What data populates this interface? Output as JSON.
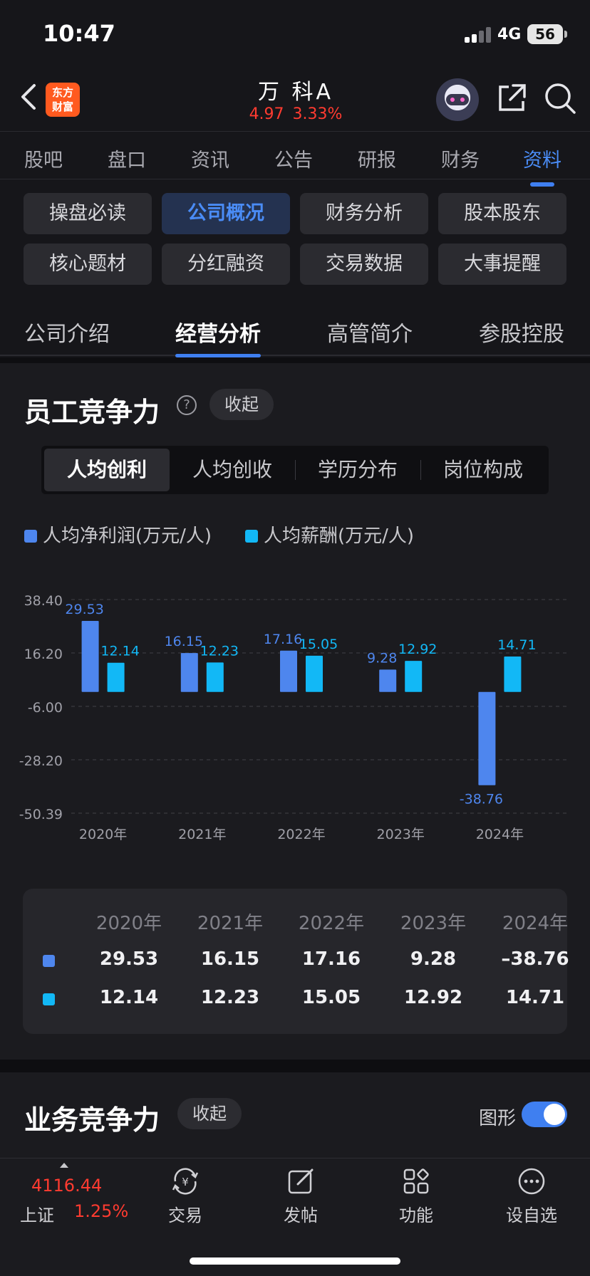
{
  "status": {
    "time": "10:47",
    "network": "4G",
    "battery": "56"
  },
  "header": {
    "logo_text_1": "东方",
    "logo_text_2": "财富",
    "title": "万 科A",
    "price": "4.97",
    "change_pct": "3.33%",
    "icons": [
      "back-chevron-icon",
      "robot-avatar-icon",
      "share-icon",
      "search-icon"
    ]
  },
  "main_tabs": [
    "股吧",
    "盘口",
    "资讯",
    "公告",
    "研报",
    "财务",
    "资料"
  ],
  "main_tabs_active": "资料",
  "grid_buttons": [
    "操盘必读",
    "公司概况",
    "财务分析",
    "股本股东",
    "核心题材",
    "分红融资",
    "交易数据",
    "大事提醒"
  ],
  "grid_active": "公司概况",
  "sub_tabs": [
    "公司介绍",
    "经营分析",
    "高管简介",
    "参股控股"
  ],
  "sub_tabs_active": "经营分析",
  "section1": {
    "title": "员工竞争力",
    "help": "?",
    "collapse": "收起",
    "segments": [
      "人均创利",
      "人均创收",
      "学历分布",
      "岗位构成"
    ],
    "segment_active": "人均创利",
    "legend": [
      "人均净利润(万元/人)",
      "人均薪酬(万元/人)"
    ]
  },
  "chart_data": {
    "type": "bar",
    "categories": [
      "2020年",
      "2021年",
      "2022年",
      "2023年",
      "2024年"
    ],
    "series": [
      {
        "name": "人均净利润(万元/人)",
        "values": [
          29.53,
          16.15,
          17.16,
          9.28,
          -38.76
        ],
        "color": "#4e86ee"
      },
      {
        "name": "人均薪酬(万元/人)",
        "values": [
          12.14,
          12.23,
          15.05,
          12.92,
          14.71
        ],
        "color": "#12b8f6"
      }
    ],
    "yticks": [
      "38.40",
      "16.20",
      "-6.00",
      "-28.20",
      "-50.39"
    ],
    "ylim": [
      -50.39,
      38.4
    ],
    "grid": true,
    "legend_position": "top-left"
  },
  "table": {
    "headers": [
      "2020年",
      "2021年",
      "2022年",
      "2023年",
      "2024年"
    ],
    "rows": [
      [
        "29.53",
        "16.15",
        "17.16",
        "9.28",
        "–38.76"
      ],
      [
        "12.14",
        "12.23",
        "15.05",
        "12.92",
        "14.71"
      ]
    ]
  },
  "section2": {
    "title": "业务竞争力",
    "collapse": "收起",
    "toggle_label": "图形",
    "toggle_on": true
  },
  "bottom_nav": {
    "index_value": "4116.44",
    "index_name": "上证",
    "index_pct": "1.25%",
    "items": [
      "交易",
      "发帖",
      "功能",
      "设自选"
    ],
    "icons": [
      "yuan-exchange-icon",
      "edit-post-icon",
      "grid-apps-icon",
      "more-dots-icon"
    ]
  },
  "colors": {
    "accent": "#3f7ff0",
    "up": "#ff3b30",
    "bar1": "#4e86ee",
    "bar2": "#12b8f6"
  }
}
